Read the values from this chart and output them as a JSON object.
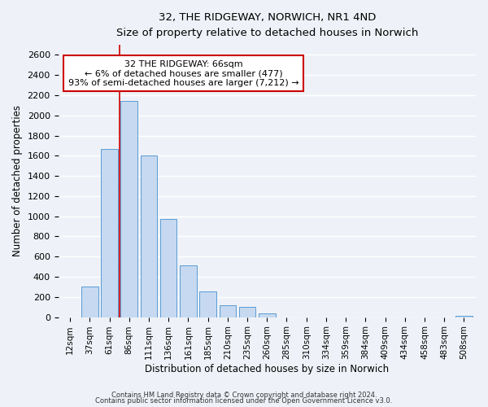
{
  "title": "32, THE RIDGEWAY, NORWICH, NR1 4ND",
  "subtitle": "Size of property relative to detached houses in Norwich",
  "xlabel": "Distribution of detached houses by size in Norwich",
  "ylabel": "Number of detached properties",
  "bar_labels": [
    "12sqm",
    "37sqm",
    "61sqm",
    "86sqm",
    "111sqm",
    "136sqm",
    "161sqm",
    "185sqm",
    "210sqm",
    "235sqm",
    "260sqm",
    "285sqm",
    "310sqm",
    "334sqm",
    "359sqm",
    "384sqm",
    "409sqm",
    "434sqm",
    "458sqm",
    "483sqm",
    "508sqm"
  ],
  "bar_values": [
    0,
    300,
    1670,
    2140,
    1600,
    970,
    510,
    255,
    120,
    100,
    35,
    0,
    0,
    0,
    0,
    0,
    0,
    0,
    0,
    0,
    15
  ],
  "bar_color": "#c6d9f0",
  "bar_edge_color": "#5b9bd5",
  "vline_color": "#cc0000",
  "vline_x_index": 2.5,
  "ylim": [
    0,
    2700
  ],
  "yticks": [
    0,
    200,
    400,
    600,
    800,
    1000,
    1200,
    1400,
    1600,
    1800,
    2000,
    2200,
    2400,
    2600
  ],
  "annotation_title": "32 THE RIDGEWAY: 66sqm",
  "annotation_line1": "← 6% of detached houses are smaller (477)",
  "annotation_line2": "93% of semi-detached houses are larger (7,212) →",
  "annotation_box_color": "#ffffff",
  "annotation_box_edge": "#cc0000",
  "footnote1": "Contains HM Land Registry data © Crown copyright and database right 2024.",
  "footnote2": "Contains public sector information licensed under the Open Government Licence v3.0.",
  "background_color": "#eef2f8",
  "grid_color": "#ffffff"
}
